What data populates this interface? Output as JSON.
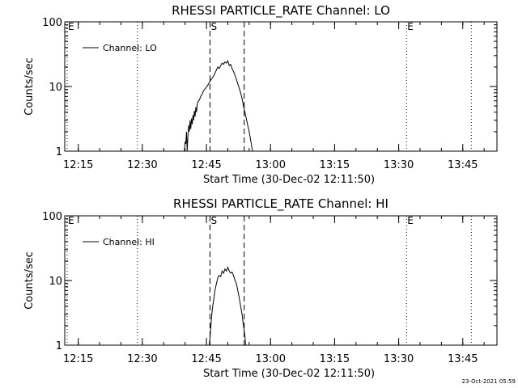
{
  "chart_data": [
    {
      "type": "line",
      "title": "RHESSI PARTICLE_RATE Channel: LO",
      "xlabel": "Start Time (30-Dec-02 12:11:50)",
      "ylabel": "Counts/sec",
      "y_scale": "log",
      "ylim": [
        1,
        100
      ],
      "y_ticks": [
        "1",
        "10",
        "100"
      ],
      "x_ticks": [
        "12:15",
        "12:30",
        "12:45",
        "13:00",
        "13:15",
        "13:30",
        "13:45"
      ],
      "legend": {
        "label": "Channel: LO",
        "position": "top-left"
      },
      "markers": [
        {
          "label": "E",
          "time": "12:11:50",
          "style": "dotted"
        },
        {
          "label": "",
          "time": "12:28:50",
          "style": "dotted"
        },
        {
          "label": "S",
          "time": "12:45:50",
          "style": "dashed"
        },
        {
          "label": "",
          "time": "12:53:50",
          "style": "dashed"
        },
        {
          "label": "E",
          "time": "13:31:50",
          "style": "dotted"
        },
        {
          "label": "",
          "time": "13:47:00",
          "style": "dotted"
        }
      ],
      "series": [
        {
          "name": "Channel: LO",
          "x": [
            "12:39:50",
            "12:40:00",
            "12:40:10",
            "12:40:20",
            "12:40:30",
            "12:40:40",
            "12:40:50",
            "12:41:00",
            "12:41:10",
            "12:41:20",
            "12:41:30",
            "12:41:40",
            "12:41:50",
            "12:42:00",
            "12:42:10",
            "12:42:20",
            "12:42:30",
            "12:42:40",
            "12:42:50",
            "12:43:00",
            "12:43:20",
            "12:43:40",
            "12:44:00",
            "12:44:20",
            "12:44:40",
            "12:45:00",
            "12:45:20",
            "12:45:40",
            "12:46:00",
            "12:46:20",
            "12:46:40",
            "12:47:00",
            "12:47:20",
            "12:47:40",
            "12:48:00",
            "12:48:20",
            "12:48:40",
            "12:49:00",
            "12:49:20",
            "12:49:40",
            "12:50:00",
            "12:50:20",
            "12:50:40",
            "12:51:00",
            "12:51:20",
            "12:51:40",
            "12:52:00",
            "12:52:20",
            "12:52:40",
            "12:53:00",
            "12:53:20",
            "12:53:40",
            "12:54:00",
            "12:54:20",
            "12:54:40",
            "12:55:00",
            "12:55:20",
            "12:55:40",
            "12:55:50"
          ],
          "y": [
            1.0,
            1.4,
            1.3,
            2.0,
            1.0,
            1.8,
            2.5,
            2.0,
            3.0,
            2.2,
            3.2,
            2.6,
            3.6,
            3.0,
            4.2,
            3.4,
            4.8,
            4.0,
            5.2,
            5.8,
            6.2,
            7.0,
            7.6,
            8.6,
            9.2,
            9.8,
            10.5,
            11.5,
            12.5,
            13.5,
            14.5,
            16,
            18,
            20,
            19,
            21,
            23,
            22,
            24,
            23,
            25,
            21,
            22,
            19,
            17,
            15,
            13,
            11,
            9.5,
            8,
            6.5,
            5,
            4,
            3.2,
            2.5,
            2.0,
            1.5,
            1.1,
            1.0
          ]
        }
      ]
    },
    {
      "type": "line",
      "title": "RHESSI PARTICLE_RATE Channel: HI",
      "xlabel": "Start Time (30-Dec-02 12:11:50)",
      "ylabel": "Counts/sec",
      "y_scale": "log",
      "ylim": [
        1,
        100
      ],
      "y_ticks": [
        "1",
        "10",
        "100"
      ],
      "x_ticks": [
        "12:15",
        "12:30",
        "12:45",
        "13:00",
        "13:15",
        "13:30",
        "13:45"
      ],
      "legend": {
        "label": "Channel: HI",
        "position": "top-left"
      },
      "markers": [
        {
          "label": "E",
          "time": "12:11:50",
          "style": "dotted"
        },
        {
          "label": "",
          "time": "12:28:50",
          "style": "dotted"
        },
        {
          "label": "S",
          "time": "12:45:50",
          "style": "dashed"
        },
        {
          "label": "",
          "time": "12:53:50",
          "style": "dashed"
        },
        {
          "label": "E",
          "time": "13:31:50",
          "style": "dotted"
        },
        {
          "label": "",
          "time": "13:47:00",
          "style": "dotted"
        }
      ],
      "series": [
        {
          "name": "Channel: HI",
          "x": [
            "12:45:40",
            "12:45:50",
            "12:46:00",
            "12:46:10",
            "12:46:20",
            "12:46:40",
            "12:47:00",
            "12:47:20",
            "12:47:40",
            "12:48:00",
            "12:48:20",
            "12:48:40",
            "12:49:00",
            "12:49:20",
            "12:49:40",
            "12:50:00",
            "12:50:20",
            "12:50:40",
            "12:51:00",
            "12:51:20",
            "12:51:40",
            "12:52:00",
            "12:52:20",
            "12:52:40",
            "12:53:00",
            "12:53:20",
            "12:53:40",
            "12:54:00",
            "12:54:10"
          ],
          "y": [
            1.0,
            1.3,
            1.8,
            2.5,
            3.4,
            5.0,
            7.0,
            9.0,
            11,
            12,
            11.5,
            14,
            13,
            15,
            14,
            16,
            14,
            13,
            13.5,
            12,
            10,
            9,
            7,
            5.5,
            4,
            3,
            2,
            1.4,
            1.0
          ]
        }
      ]
    }
  ],
  "footer": {
    "timestamp": "23-Oct-2021 05:59"
  }
}
